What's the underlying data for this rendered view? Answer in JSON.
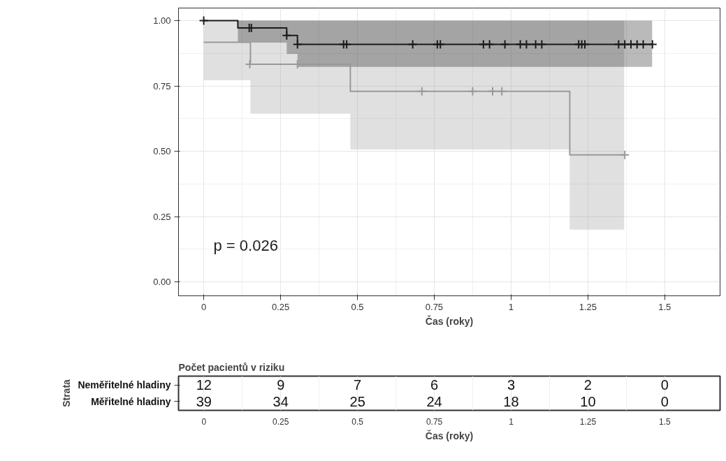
{
  "chart_data": [
    {
      "type": "step",
      "xlabel": "Čas (roky)",
      "xlim": [
        -0.082,
        1.68
      ],
      "ylim": [
        -0.053,
        1.048
      ],
      "xticks": [
        0,
        0.25,
        0.5,
        0.75,
        1,
        1.25,
        1.5
      ],
      "yticks": [
        {
          "value": 0,
          "label": "0.00"
        },
        {
          "value": 0.25,
          "label": "0.25"
        },
        {
          "value": 0.5,
          "label": "0.50"
        },
        {
          "value": 0.75,
          "label": "0.75"
        },
        {
          "value": 1,
          "label": "1.00"
        }
      ],
      "grid": true,
      "line_style": "solid",
      "annotations": [
        "p = 0.026"
      ],
      "series": [
        {
          "type": "step",
          "color": "#999999",
          "x": [
            0,
            0.152,
            0.477,
            1.191,
            1.368
          ],
          "values": [
            0.917,
            0.833,
            0.729,
            0.486,
            0.486
          ],
          "lower": [
            0.772,
            0.644,
            0.507,
            0.2,
            0.2
          ],
          "upper": [
            1,
            1,
            1,
            1,
            1
          ]
        },
        {
          "type": "step",
          "color": "#1a1a1a",
          "x": [
            0,
            0.111,
            0.27,
            0.305,
            1.459
          ],
          "values": [
            1,
            0.972,
            0.943,
            0.909,
            0.909
          ],
          "lower": [
            1,
            0.916,
            0.872,
            0.823,
            0.823
          ],
          "upper": [
            1,
            1,
            1,
            1,
            1
          ]
        },
        {
          "type": "scatter",
          "marker": "cross",
          "color": "#999999",
          "x": [
            0.15,
            0.305,
            0.71,
            0.875,
            0.94,
            0.97,
            1.37
          ],
          "values": [
            0.833,
            0.833,
            0.729,
            0.729,
            0.729,
            0.729,
            0.486
          ]
        },
        {
          "type": "scatter",
          "marker": "cross",
          "color": "#1a1a1a",
          "x": [
            0,
            0.148,
            0.155,
            0.27,
            0.305,
            0.455,
            0.465,
            0.68,
            0.76,
            0.77,
            0.91,
            0.93,
            0.98,
            1.03,
            1.05,
            1.08,
            1.1,
            1.22,
            1.23,
            1.24,
            1.35,
            1.37,
            1.39,
            1.41,
            1.43,
            1.46
          ],
          "values": [
            1,
            0.972,
            0.972,
            0.943,
            0.909,
            0.909,
            0.909,
            0.909,
            0.909,
            0.909,
            0.909,
            0.909,
            0.909,
            0.909,
            0.909,
            0.909,
            0.909,
            0.909,
            0.909,
            0.909,
            0.909,
            0.909,
            0.909,
            0.909,
            0.909,
            0.909
          ]
        }
      ]
    },
    {
      "type": "heatmap",
      "title": "Počet pacientů v riziku",
      "xlabel": "Čas (roky)",
      "ylabel": "Strata",
      "grid": "x",
      "data_labels": true,
      "categories": [
        "0",
        "0.25",
        "0.5",
        "0.75",
        "1",
        "1.25",
        "1.5"
      ],
      "y_categories": [
        "Neměřitelné hladiny",
        "Měřitelné hladiny"
      ],
      "cells": [
        [
          12,
          9,
          7,
          6,
          3,
          2,
          0
        ],
        [
          39,
          34,
          25,
          24,
          18,
          10,
          0
        ]
      ]
    }
  ]
}
